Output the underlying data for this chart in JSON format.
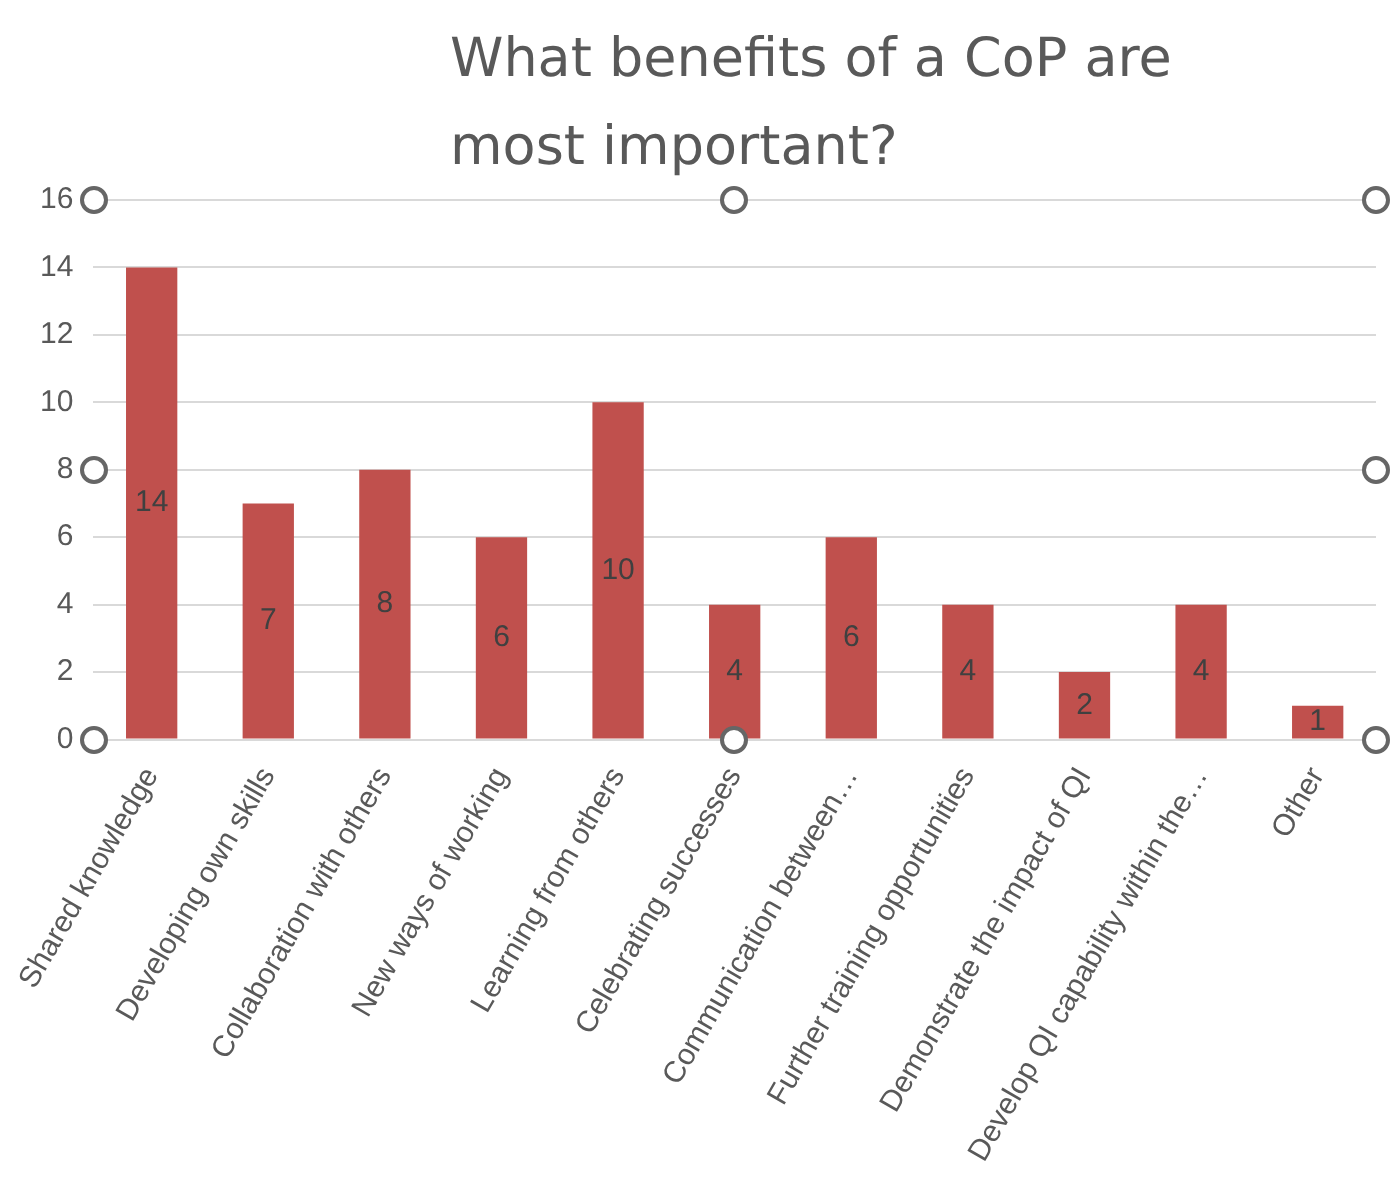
{
  "chart_data": {
    "type": "bar",
    "title": "What benefits of a CoP are most important?",
    "categories": [
      "Shared knowledge",
      "Developing own skills",
      "Collaboration with others",
      "New ways of working",
      "Learning from others",
      "Celebrating successes",
      "Communication between…",
      "Further training opportunities",
      "Demonstrate the impact of QI",
      "Develop QI capability within the…",
      "Other"
    ],
    "values": [
      14,
      7,
      8,
      6,
      10,
      4,
      6,
      4,
      2,
      4,
      1
    ],
    "color": "#c0504d",
    "ylim": [
      0,
      16
    ],
    "yticks": [
      0,
      2,
      4,
      6,
      8,
      10,
      12,
      14,
      16
    ],
    "grid": "y",
    "data_labels": true,
    "legend": false
  }
}
